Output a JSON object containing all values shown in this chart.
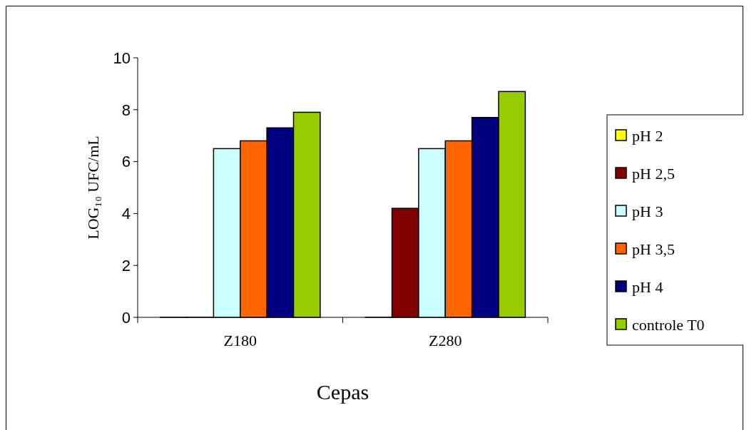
{
  "chart_data": {
    "type": "bar",
    "categories": [
      "Z180",
      "Z280"
    ],
    "xlabel": "Cepas",
    "ylabel": "LOG₁₀ UFC/mL",
    "ylim": [
      0,
      10
    ],
    "yticks": [
      0,
      2,
      4,
      6,
      8,
      10
    ],
    "legend": "right",
    "grid": false,
    "series": [
      {
        "name": "pH 2",
        "color": "#ffff00",
        "values": [
          0,
          0
        ]
      },
      {
        "name": "pH 2,5",
        "color": "#800000",
        "values": [
          0,
          4.2
        ]
      },
      {
        "name": "pH 3",
        "color": "#ccffff",
        "values": [
          6.5,
          6.5
        ]
      },
      {
        "name": "pH 3,5",
        "color": "#ff6600",
        "values": [
          6.8,
          6.8
        ]
      },
      {
        "name": "pH 4",
        "color": "#000080",
        "values": [
          7.3,
          7.7
        ]
      },
      {
        "name": "controle T0",
        "color": "#99cc00",
        "values": [
          7.9,
          8.7
        ]
      }
    ]
  }
}
